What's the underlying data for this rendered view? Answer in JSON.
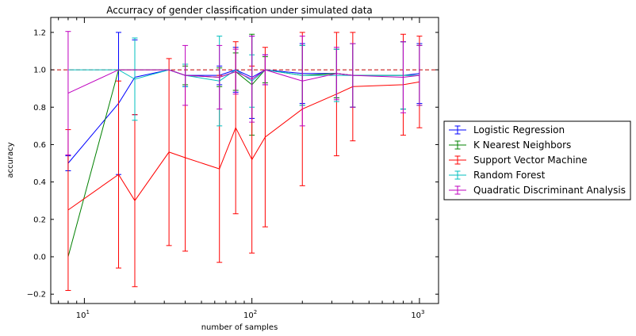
{
  "chart_data": {
    "type": "line",
    "title": "Accurracy of gender classification under simulated data",
    "xlabel": "number of samples",
    "ylabel": "accuracy",
    "xscale": "log",
    "xlim": [
      6.3,
      1300
    ],
    "ylim": [
      -0.25,
      1.28
    ],
    "xticks": [
      10,
      100,
      1000
    ],
    "xtick_labels": [
      {
        "base": "10",
        "exp": "1"
      },
      {
        "base": "10",
        "exp": "2"
      },
      {
        "base": "10",
        "exp": "3"
      }
    ],
    "yticks": [
      -0.2,
      0.0,
      0.2,
      0.4,
      0.6,
      0.8,
      1.0,
      1.2
    ],
    "ytick_labels": [
      "−0.2",
      "0.0",
      "0.2",
      "0.4",
      "0.6",
      "0.8",
      "1.0",
      "1.2"
    ],
    "reference_line": {
      "y": 1.0,
      "style": "dashed",
      "color": "#c00000"
    },
    "grid": false,
    "legend_position": "outside-right",
    "series": [
      {
        "name": "Logistic Regression",
        "color": "#0000ff",
        "x": [
          8,
          16,
          20,
          32,
          40,
          64,
          80,
          100,
          120,
          200,
          320,
          400,
          800,
          1000
        ],
        "y": [
          0.5,
          0.82,
          0.96,
          1.0,
          0.97,
          0.97,
          1.0,
          0.96,
          1.0,
          0.98,
          0.98,
          0.97,
          0.97,
          0.98
        ],
        "err": [
          0.04,
          0.38,
          0.2,
          0.0,
          0.06,
          0.05,
          0.12,
          0.22,
          0.08,
          0.16,
          0.13,
          0.17,
          0.18,
          0.16
        ]
      },
      {
        "name": "K Nearest Neighbors",
        "color": "#008000",
        "x": [
          8,
          16,
          20,
          32,
          40,
          64,
          80,
          100,
          120,
          200,
          320,
          400,
          800,
          1000
        ],
        "y": [
          0.0,
          1.0,
          1.0,
          1.0,
          0.97,
          0.96,
          0.99,
          0.92,
          1.0,
          0.97,
          0.98,
          0.97,
          0.97,
          0.97
        ],
        "err": [
          0.0,
          0.0,
          0.0,
          0.0,
          0.05,
          0.05,
          0.1,
          0.27,
          0.07,
          0.16,
          0.13,
          0.17,
          0.18,
          0.16
        ]
      },
      {
        "name": "Support Vector Machine",
        "color": "#ff0000",
        "x": [
          8,
          16,
          20,
          32,
          40,
          64,
          80,
          100,
          120,
          200,
          320,
          400,
          800,
          1000
        ],
        "y": [
          0.25,
          0.44,
          0.3,
          0.56,
          0.53,
          0.47,
          0.69,
          0.52,
          0.64,
          0.79,
          0.87,
          0.91,
          0.92,
          0.935
        ],
        "err": [
          0.43,
          0.5,
          0.46,
          0.5,
          0.5,
          0.5,
          0.46,
          0.5,
          0.48,
          0.41,
          0.33,
          0.29,
          0.27,
          0.245
        ]
      },
      {
        "name": "Random Forest",
        "color": "#00bfbf",
        "x": [
          8,
          16,
          20,
          32,
          40,
          64,
          80,
          100,
          120,
          200,
          320,
          400,
          800,
          1000
        ],
        "y": [
          1.0,
          1.0,
          0.95,
          1.0,
          0.97,
          0.94,
          1.0,
          0.94,
          1.0,
          0.97,
          0.97,
          0.97,
          0.97,
          0.97
        ],
        "err": [
          0.0,
          0.0,
          0.22,
          0.0,
          0.06,
          0.24,
          0.0,
          0.14,
          0.0,
          0.16,
          0.14,
          0.17,
          0.18,
          0.16
        ]
      },
      {
        "name": "Quadratic Discriminant Analysis",
        "color": "#bf00bf",
        "x": [
          8,
          16,
          20,
          32,
          40,
          64,
          80,
          100,
          120,
          200,
          320,
          400,
          800,
          1000
        ],
        "y": [
          0.875,
          1.0,
          1.0,
          1.0,
          0.97,
          0.96,
          0.99,
          0.95,
          1.0,
          0.94,
          0.98,
          0.97,
          0.96,
          0.97
        ],
        "err": [
          0.33,
          0.0,
          0.0,
          0.0,
          0.16,
          0.17,
          0.12,
          0.23,
          0.08,
          0.24,
          0.14,
          0.17,
          0.19,
          0.16
        ]
      }
    ]
  }
}
